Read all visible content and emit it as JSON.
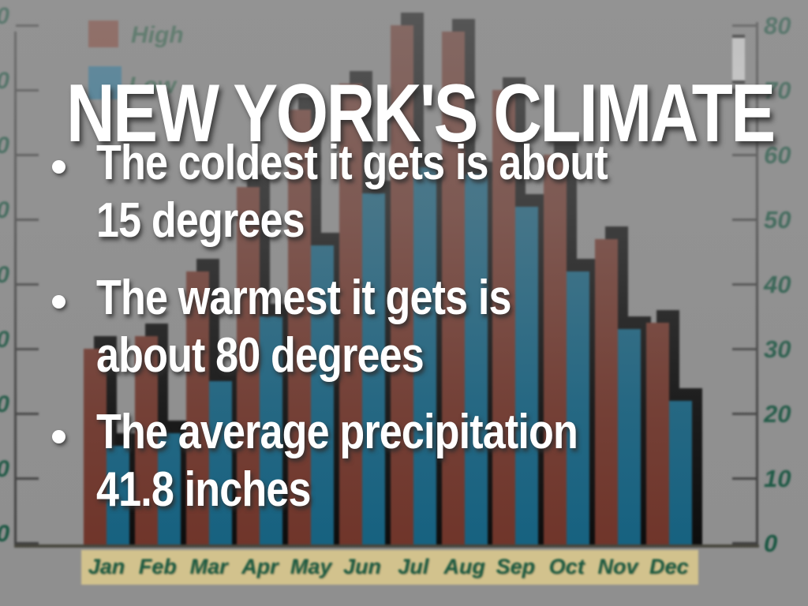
{
  "title": "NEW YORK'S CLIMATE",
  "bullets": [
    {
      "lines": [
        "The coldest it gets is about",
        "15 degrees"
      ]
    },
    {
      "lines": [
        "The warmest it gets is",
        "about 80 degrees"
      ]
    },
    {
      "lines": [
        "The average precipitation",
        "41.8 inches"
      ]
    }
  ],
  "legend": {
    "high_label": "High",
    "low_label": "Low"
  },
  "chart_data": {
    "type": "bar",
    "title": "",
    "xlabel": "",
    "ylabel": "",
    "categories": [
      "Jan",
      "Feb",
      "Mar",
      "Apr",
      "May",
      "Jun",
      "Jul",
      "Aug",
      "Sep",
      "Oct",
      "Nov",
      "Dec"
    ],
    "series": [
      {
        "name": "High",
        "values": [
          30,
          32,
          42,
          55,
          67,
          71,
          80,
          79,
          70,
          60,
          47,
          34
        ]
      },
      {
        "name": "Low",
        "values": [
          15,
          17,
          25,
          35,
          46,
          54,
          58,
          57,
          52,
          42,
          33,
          22
        ]
      }
    ],
    "ylim": [
      0,
      80
    ],
    "yticks": [
      0,
      10,
      20,
      30,
      40,
      50,
      60,
      70,
      80
    ],
    "grid": false,
    "legend_position": "top-left",
    "axis_tick_side": "right"
  },
  "colors": {
    "background_gray": "#8f8f8f",
    "bar_high": "#6f3429",
    "bar_low": "#156180",
    "bar_shadow": "#0b0b0b",
    "axis_text_green": "#175540",
    "month_text_green": "#1c5a40",
    "month_strip_tan": "#d2c28d",
    "slide_text": "#ffffff"
  }
}
